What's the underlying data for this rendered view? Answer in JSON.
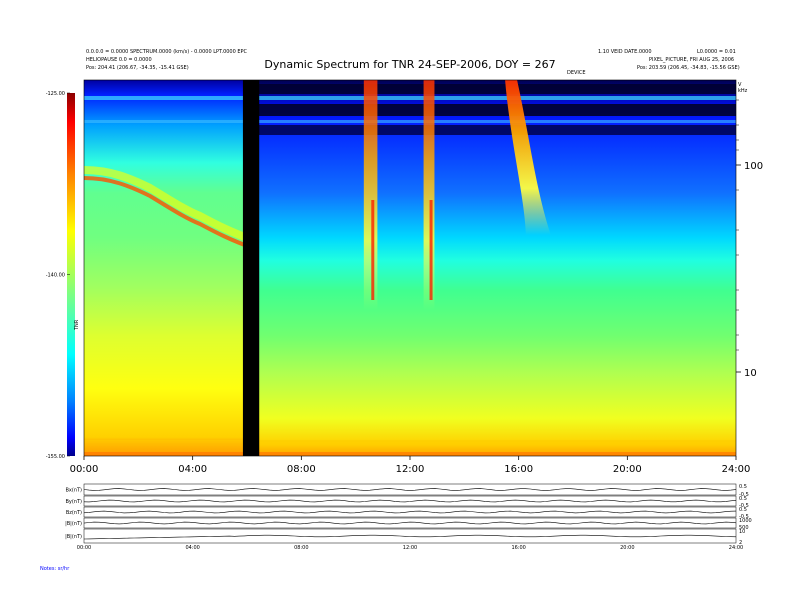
{
  "header": {
    "left_line1": "0.0.0.0 = 0.0000 SPECTRUM.0000 (km/s) - 0.0000 LPT.0000 EPC",
    "left_line2": "HELIOPAUSE 0.0 = 0.0000",
    "left_line3": "Pos:     204.41 (206.67, -34.35, -15.41 GSE)",
    "right_line1": "1.10 VEID DATE.0000",
    "right_line2": "L0.0000 = 0.01",
    "right_line3": "PIXEL_PICTURE, FRI AUG 25, 2006",
    "right_line4": "Pos:     203.59 (206.45, -34.83, -15.56 GSE)",
    "right_unit": "kHz",
    "right_small": "V",
    "center_small": "DEVICE"
  },
  "chart_data": {
    "type": "heatmap",
    "title": "Dynamic Spectrum for TNR 24-SEP-2006, DOY = 267",
    "x_ticks": [
      "00:00",
      "04:00",
      "08:00",
      "12:00",
      "16:00",
      "20:00",
      "24:00"
    ],
    "x_range_hours": [
      0,
      24
    ],
    "y_right_ticks": [
      "100",
      "10"
    ],
    "y_right_unit": "kHz",
    "y_scale": "log",
    "colorbar": {
      "ticks": [
        "-125.00",
        "-140.00",
        "-155.00"
      ],
      "range": [
        -155,
        -125
      ],
      "label": "TNR",
      "colors": [
        "#00008b",
        "#0000ff",
        "#0080ff",
        "#00ffff",
        "#80ff80",
        "#ffff00",
        "#ff8000",
        "#ff0000",
        "#8b0000"
      ]
    },
    "data_gap_hours": [
      5.85,
      6.45
    ],
    "bursts": [
      {
        "name": "burst-1",
        "start_hours": 10.3,
        "end_hours": 10.8
      },
      {
        "name": "burst-2",
        "start_hours": 12.5,
        "end_hours": 12.9
      },
      {
        "name": "burst-3",
        "start_hours": 15.5,
        "end_hours": 17.0
      }
    ]
  },
  "panels": {
    "labels": [
      "Bx(nT)",
      "By(nT)",
      "Bz(nT)",
      "|B|(nT)",
      "|B|(nT)"
    ],
    "x_ticks": [
      "00:00",
      "04:00",
      "08:00",
      "12:00",
      "16:00",
      "20:00",
      "24:00"
    ],
    "right_ticks": [
      [
        "0.5",
        "-0.5"
      ],
      [
        "0.5",
        "-0.5"
      ],
      [
        "0.5",
        "-0.5"
      ],
      [
        "1000",
        "500"
      ],
      [
        "10",
        "2"
      ]
    ],
    "footer": "Notes:  sr/hr"
  }
}
